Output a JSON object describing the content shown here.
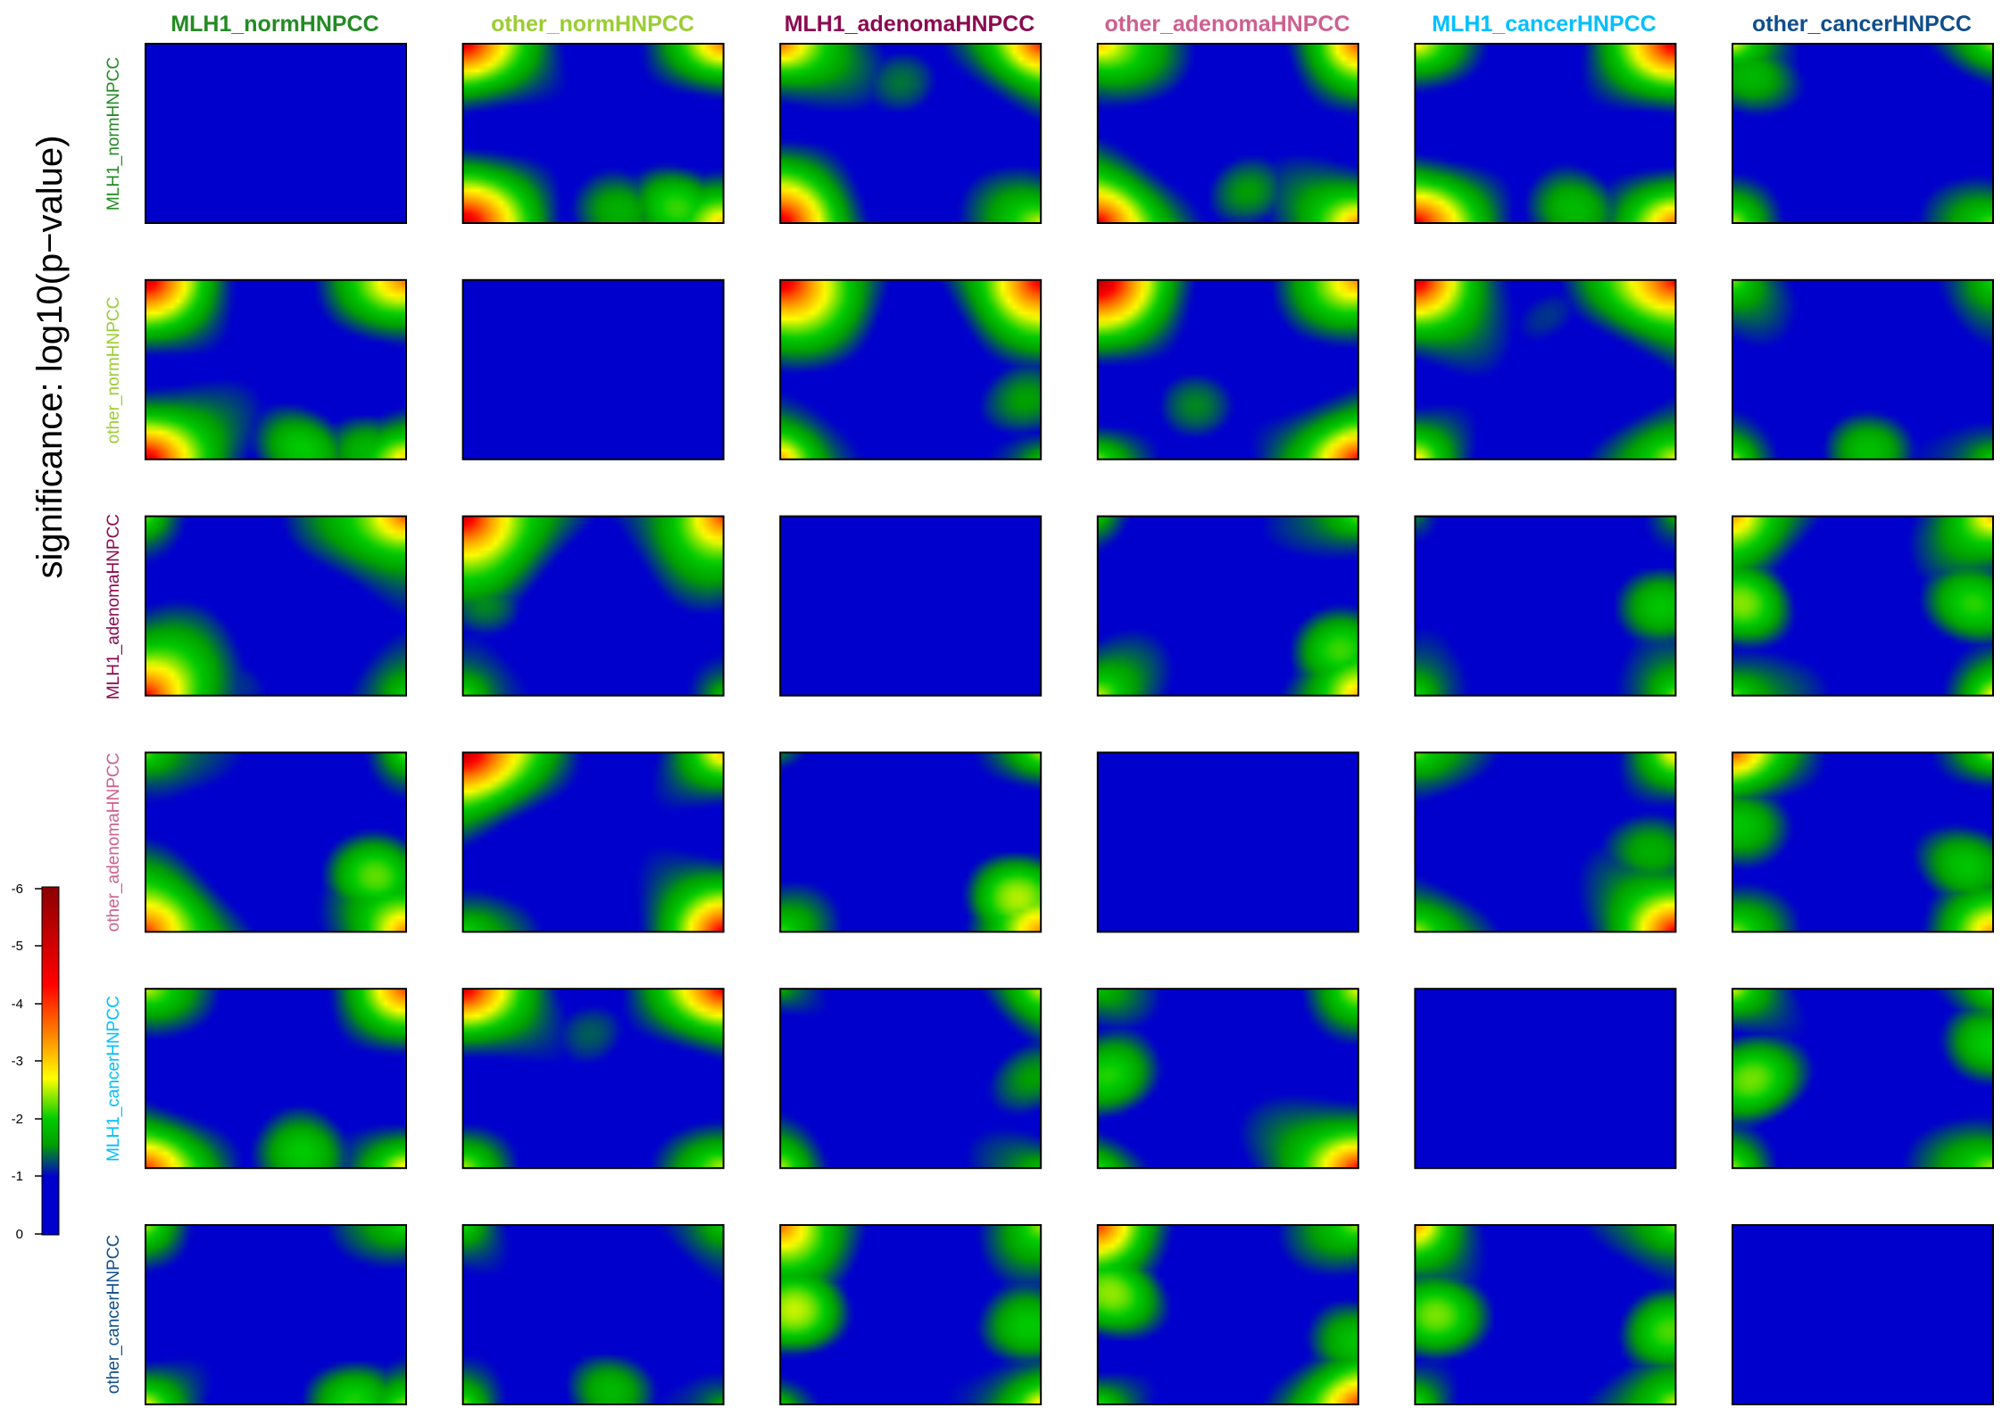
{
  "chart_data": {
    "type": "heatmap",
    "layout": "6x6 matrix of pairwise heatmaps",
    "ylabel": "significance: log10(p−value)",
    "groups": [
      {
        "label": "MLH1_normHNPCC",
        "color": "#228B22"
      },
      {
        "label": "other_normHNPCC",
        "color": "#9ACD32"
      },
      {
        "label": "MLH1_adenomaHNPCC",
        "color": "#8B0A50"
      },
      {
        "label": "other_adenomaHNPCC",
        "color": "#CD6090"
      },
      {
        "label": "MLH1_cancerHNPCC",
        "color": "#00BFFF"
      },
      {
        "label": "other_cancerHNPCC",
        "color": "#104E8B"
      }
    ],
    "colorbar": {
      "range": [
        0,
        -6
      ],
      "ticks": [
        "-6",
        "-5",
        "-4",
        "-3",
        "-2",
        "-1",
        "0"
      ],
      "colors": [
        "#0000CD",
        "#00A000",
        "#FFFF00",
        "#FF6600",
        "#FF0000",
        "#8B0000"
      ]
    },
    "panels": [
      [
        {
          "diag": true
        },
        {
          "corners": [
            4.6,
            3.4,
            4.8,
            2.8
          ],
          "blobs": [
            [
              0.58,
              0.95,
              2.0
            ],
            [
              0.8,
              0.9,
              2.0
            ]
          ]
        },
        {
          "corners": [
            3.8,
            4.2,
            4.6,
            2.6
          ],
          "blobs": [
            [
              0.5,
              0.2,
              1.2
            ]
          ]
        },
        {
          "corners": [
            3.2,
            3.6,
            4.6,
            3.5
          ],
          "blobs": [
            [
              0.55,
              0.85,
              1.4
            ]
          ]
        },
        {
          "corners": [
            2.6,
            4.5,
            4.4,
            3.4
          ],
          "blobs": [
            [
              0.6,
              0.95,
              2.0
            ]
          ]
        },
        {
          "corners": [
            2.6,
            2.4,
            2.2,
            2.2
          ],
          "blobs": [
            [
              0.05,
              0.2,
              2.0
            ]
          ]
        }
      ],
      [
        {
          "corners": [
            4.6,
            3.5,
            4.8,
            3.0
          ],
          "blobs": [
            [
              0.6,
              0.95,
              2.0
            ],
            [
              0.85,
              0.92,
              1.8
            ]
          ]
        },
        {
          "diag": true
        },
        {
          "corners": [
            5.0,
            4.6,
            3.5,
            2.2
          ],
          "blobs": [
            [
              0.95,
              0.7,
              1.8
            ]
          ]
        },
        {
          "corners": [
            5.2,
            3.3,
            2.4,
            4.4
          ],
          "blobs": [
            [
              0.35,
              0.7,
              1.2
            ]
          ]
        },
        {
          "corners": [
            4.8,
            4.6,
            2.8,
            2.8
          ],
          "blobs": [
            [
              0.5,
              0.2,
              1.2
            ]
          ]
        },
        {
          "corners": [
            2.4,
            2.2,
            2.6,
            2.4
          ],
          "blobs": [
            [
              0.5,
              0.95,
              1.6
            ]
          ]
        }
      ],
      [
        {
          "corners": [
            2.4,
            4.2,
            4.5,
            2.2
          ],
          "blobs": [
            [
              0.35,
              0.95,
              1.2
            ]
          ]
        },
        {
          "corners": [
            5.2,
            4.2,
            2.6,
            2.2
          ],
          "blobs": [
            [
              0.1,
              0.5,
              1.2
            ]
          ]
        },
        {
          "diag": true
        },
        {
          "corners": [
            2.0,
            2.6,
            2.6,
            3.2
          ],
          "blobs": [
            [
              0.9,
              0.75,
              2.0
            ]
          ]
        },
        {
          "corners": [
            1.8,
            2.0,
            2.4,
            2.6
          ],
          "blobs": [
            [
              0.95,
              0.5,
              1.6
            ]
          ]
        },
        {
          "corners": [
            3.4,
            3.2,
            2.6,
            2.8
          ],
          "blobs": [
            [
              0.05,
              0.5,
              2.2
            ],
            [
              0.95,
              0.5,
              2.0
            ]
          ]
        }
      ],
      [
        {
          "corners": [
            2.6,
            2.4,
            4.2,
            3.6
          ],
          "blobs": [
            [
              0.9,
              0.7,
              2.0
            ]
          ]
        },
        {
          "corners": [
            5.4,
            3.0,
            2.2,
            4.4
          ],
          "blobs": [
            [
              0.3,
              0.3,
              1.2
            ]
          ]
        },
        {
          "corners": [
            1.6,
            2.6,
            2.0,
            3.2
          ],
          "blobs": [
            [
              0.9,
              0.8,
              2.2
            ]
          ]
        },
        {
          "diag": true
        },
        {
          "corners": [
            2.4,
            2.8,
            2.6,
            4.4
          ],
          "blobs": [
            [
              0.95,
              0.55,
              1.8
            ]
          ]
        },
        {
          "corners": [
            3.8,
            2.4,
            2.2,
            3.0
          ],
          "blobs": [
            [
              0.05,
              0.4,
              2.2
            ],
            [
              0.9,
              0.6,
              2.0
            ]
          ]
        }
      ],
      [
        {
          "corners": [
            2.4,
            3.6,
            4.0,
            2.8
          ],
          "blobs": [
            [
              0.6,
              0.95,
              2.0
            ]
          ]
        },
        {
          "corners": [
            4.6,
            4.4,
            2.2,
            2.4
          ],
          "blobs": [
            [
              0.5,
              0.2,
              1.2
            ]
          ]
        },
        {
          "corners": [
            1.8,
            2.6,
            2.4,
            2.0
          ],
          "blobs": [
            [
              0.95,
              0.5,
              1.6
            ]
          ]
        },
        {
          "corners": [
            1.8,
            2.4,
            2.2,
            4.4
          ],
          "blobs": [
            [
              0.05,
              0.5,
              2.2
            ]
          ]
        },
        {
          "diag": true
        },
        {
          "corners": [
            2.6,
            2.2,
            2.2,
            2.6
          ],
          "blobs": [
            [
              0.05,
              0.5,
              2.4
            ],
            [
              0.95,
              0.3,
              2.0
            ]
          ]
        }
      ],
      [
        {
          "corners": [
            2.2,
            2.2,
            2.6,
            2.4
          ],
          "blobs": [
            [
              0.8,
              0.95,
              2.0
            ]
          ]
        },
        {
          "corners": [
            2.2,
            2.2,
            2.4,
            2.0
          ],
          "blobs": [
            [
              0.55,
              0.9,
              1.6
            ]
          ]
        },
        {
          "corners": [
            3.6,
            2.4,
            2.2,
            3.2
          ],
          "blobs": [
            [
              0.05,
              0.5,
              2.4
            ],
            [
              0.95,
              0.6,
              2.0
            ]
          ]
        },
        {
          "corners": [
            3.8,
            2.4,
            2.2,
            4.0
          ],
          "blobs": [
            [
              0.05,
              0.4,
              2.4
            ],
            [
              0.95,
              0.65,
              2.0
            ]
          ]
        },
        {
          "corners": [
            3.4,
            2.6,
            2.2,
            2.8
          ],
          "blobs": [
            [
              0.05,
              0.5,
              2.2
            ],
            [
              0.95,
              0.6,
              2.0
            ]
          ]
        },
        {
          "diag": true
        }
      ]
    ]
  }
}
